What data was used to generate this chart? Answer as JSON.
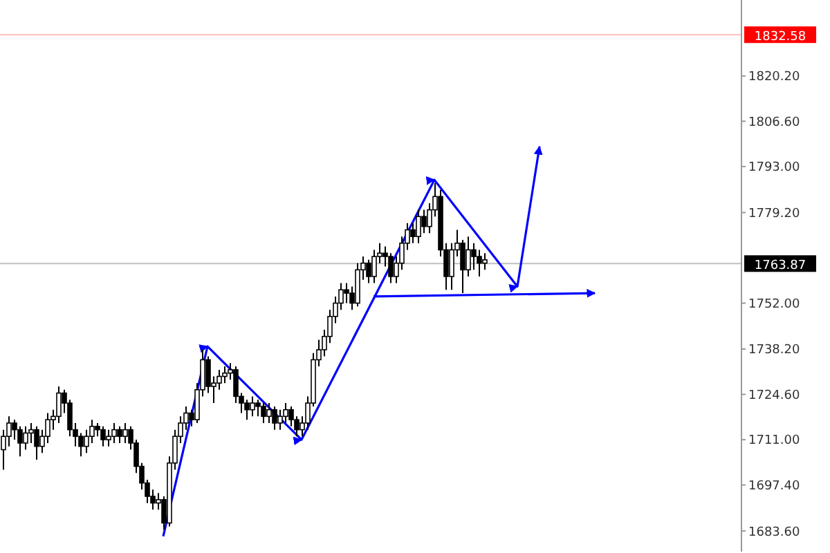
{
  "chart_data": {
    "type": "candlestick",
    "tick_labels": "y",
    "categories": [
      null,
      null,
      null,
      null,
      null,
      null,
      null,
      null,
      null,
      null,
      null,
      null,
      null,
      null,
      null,
      null,
      null,
      null,
      null,
      null,
      null,
      null,
      null,
      null,
      null,
      null,
      null,
      null,
      null,
      null,
      null,
      null,
      null,
      null,
      null,
      null,
      null,
      null,
      null,
      null,
      null,
      null,
      null,
      null,
      null,
      null,
      null,
      null,
      null,
      null,
      null,
      null,
      null,
      null,
      null,
      null,
      null,
      null,
      null,
      null,
      null,
      null,
      null,
      null,
      null,
      null,
      null,
      null,
      null,
      null,
      null,
      null,
      null,
      null,
      null,
      null,
      null,
      null,
      null,
      null,
      null,
      null,
      null,
      null,
      null,
      null,
      null,
      null,
      null,
      null,
      null,
      null,
      null,
      null,
      null,
      null,
      null,
      null,
      null,
      null,
      null,
      null,
      null,
      null,
      null,
      null,
      null,
      null,
      null,
      null,
      null,
      null,
      null,
      null,
      null,
      null,
      null,
      null,
      null,
      null,
      null,
      null,
      null,
      null,
      null,
      null,
      null,
      null,
      null,
      null,
      null,
      null,
      null,
      null
    ],
    "ohlc": [
      [
        1708,
        1714,
        1702,
        1712
      ],
      [
        1712,
        1718,
        1709,
        1716
      ],
      [
        1716,
        1717,
        1711,
        1714
      ],
      [
        1714,
        1715,
        1706,
        1710
      ],
      [
        1710,
        1715,
        1708,
        1713
      ],
      [
        1713,
        1716,
        1710,
        1714
      ],
      [
        1714,
        1715,
        1705,
        1709
      ],
      [
        1709,
        1714,
        1707,
        1712
      ],
      [
        1712,
        1719,
        1710,
        1717
      ],
      [
        1717,
        1720,
        1714,
        1718
      ],
      [
        1718,
        1727,
        1716,
        1725
      ],
      [
        1725,
        1726,
        1719,
        1722
      ],
      [
        1722,
        1723,
        1712,
        1714
      ],
      [
        1714,
        1716,
        1709,
        1712
      ],
      [
        1712,
        1713,
        1706,
        1709
      ],
      [
        1709,
        1714,
        1707,
        1712
      ],
      [
        1712,
        1717,
        1710,
        1715
      ],
      [
        1715,
        1716,
        1712,
        1714
      ],
      [
        1714,
        1715,
        1709,
        1711
      ],
      [
        1711,
        1714,
        1709,
        1712
      ],
      [
        1712,
        1716,
        1710,
        1714
      ],
      [
        1714,
        1715,
        1710,
        1712
      ],
      [
        1712,
        1716,
        1710,
        1714
      ],
      [
        1714,
        1715,
        1708,
        1710
      ],
      [
        1710,
        1711,
        1701,
        1703
      ],
      [
        1703,
        1704,
        1696,
        1698
      ],
      [
        1698,
        1699,
        1692,
        1694
      ],
      [
        1694,
        1696,
        1690,
        1692
      ],
      [
        1692,
        1695,
        1690,
        1693
      ],
      [
        1693,
        1694,
        1684,
        1686
      ],
      [
        1686,
        1706,
        1685,
        1704
      ],
      [
        1704,
        1714,
        1702,
        1712
      ],
      [
        1712,
        1718,
        1710,
        1716
      ],
      [
        1716,
        1721,
        1714,
        1719
      ],
      [
        1719,
        1720,
        1715,
        1717
      ],
      [
        1717,
        1728,
        1716,
        1726
      ],
      [
        1726,
        1738,
        1724,
        1735
      ],
      [
        1735,
        1736,
        1725,
        1727
      ],
      [
        1727,
        1730,
        1722,
        1728
      ],
      [
        1728,
        1732,
        1726,
        1730
      ],
      [
        1730,
        1733,
        1728,
        1731
      ],
      [
        1731,
        1734,
        1729,
        1732
      ],
      [
        1732,
        1733,
        1722,
        1724
      ],
      [
        1724,
        1725,
        1719,
        1722
      ],
      [
        1722,
        1723,
        1717,
        1720
      ],
      [
        1720,
        1724,
        1718,
        1722
      ],
      [
        1722,
        1723,
        1718,
        1721
      ],
      [
        1721,
        1722,
        1716,
        1718
      ],
      [
        1718,
        1722,
        1716,
        1720
      ],
      [
        1720,
        1721,
        1714,
        1716
      ],
      [
        1716,
        1720,
        1714,
        1718
      ],
      [
        1718,
        1722,
        1716,
        1720
      ],
      [
        1720,
        1721,
        1715,
        1717
      ],
      [
        1717,
        1718,
        1712,
        1714
      ],
      [
        1714,
        1718,
        1712,
        1716
      ],
      [
        1716,
        1724,
        1714,
        1722
      ],
      [
        1722,
        1737,
        1721,
        1735
      ],
      [
        1735,
        1741,
        1733,
        1738
      ],
      [
        1738,
        1744,
        1736,
        1742
      ],
      [
        1742,
        1750,
        1740,
        1748
      ],
      [
        1748,
        1754,
        1746,
        1752
      ],
      [
        1752,
        1758,
        1750,
        1756
      ],
      [
        1756,
        1758,
        1752,
        1755
      ],
      [
        1755,
        1757,
        1750,
        1752
      ],
      [
        1752,
        1764,
        1751,
        1762
      ],
      [
        1762,
        1766,
        1759,
        1764
      ],
      [
        1764,
        1765,
        1758,
        1760
      ],
      [
        1760,
        1768,
        1758,
        1766
      ],
      [
        1766,
        1770,
        1764,
        1767
      ],
      [
        1767,
        1769,
        1763,
        1766
      ],
      [
        1766,
        1767,
        1758,
        1760
      ],
      [
        1760,
        1766,
        1758,
        1764
      ],
      [
        1764,
        1772,
        1762,
        1770
      ],
      [
        1770,
        1776,
        1768,
        1774
      ],
      [
        1774,
        1776,
        1770,
        1772
      ],
      [
        1772,
        1780,
        1770,
        1778
      ],
      [
        1778,
        1780,
        1773,
        1775
      ],
      [
        1775,
        1782,
        1773,
        1780
      ],
      [
        1780,
        1788,
        1778,
        1784
      ],
      [
        1784,
        1786,
        1766,
        1768
      ],
      [
        1768,
        1770,
        1756,
        1760
      ],
      [
        1760,
        1770,
        1756,
        1768
      ],
      [
        1768,
        1774,
        1766,
        1770
      ],
      [
        1770,
        1771,
        1755,
        1762
      ],
      [
        1762,
        1772,
        1760,
        1768
      ],
      [
        1768,
        1770,
        1762,
        1766
      ],
      [
        1766,
        1768,
        1760,
        1764
      ],
      [
        1764,
        1767,
        1762,
        1765
      ],
      null,
      null,
      null,
      null,
      null,
      null,
      null,
      null,
      null,
      null,
      null,
      null,
      null,
      null,
      null,
      null,
      null,
      null,
      null,
      null,
      null,
      null,
      null,
      null,
      null,
      null,
      null,
      null,
      null,
      null,
      null,
      null,
      null,
      null,
      null,
      null,
      null,
      null,
      null,
      null,
      null,
      null,
      null,
      null,
      null,
      null
    ],
    "series": [
      {
        "type": "line",
        "color": "#0000ff",
        "values": [
          null,
          null,
          null,
          null,
          null,
          null,
          null,
          null,
          null,
          null,
          null,
          null,
          null,
          null,
          null,
          null,
          null,
          null,
          null,
          null,
          null,
          null,
          null,
          null,
          null,
          null,
          null,
          null,
          null,
          1682,
          null,
          null,
          null,
          null,
          null,
          null,
          null,
          1739,
          null,
          null,
          null,
          null,
          null,
          null,
          null,
          null,
          null,
          null,
          null,
          null,
          null,
          null,
          null,
          null,
          1711,
          null,
          null,
          null,
          null,
          null,
          null,
          null,
          null,
          null,
          null,
          null,
          null,
          null,
          null,
          null,
          null,
          null,
          null,
          null,
          null,
          null,
          null,
          null,
          1789,
          null,
          null,
          null,
          null,
          null,
          null,
          null,
          null,
          null,
          null,
          null,
          null,
          null,
          null,
          1757,
          null,
          null,
          null,
          1799,
          null,
          null,
          null,
          null,
          null,
          null,
          null,
          null,
          null,
          null,
          null,
          null,
          null,
          null,
          null,
          null,
          null,
          null,
          null,
          null,
          null,
          null,
          null,
          null,
          null,
          null,
          null,
          null,
          null,
          null,
          null,
          null,
          null,
          null,
          null,
          null
        ]
      },
      {
        "type": "line",
        "color": "#0000ff",
        "values": [
          null,
          null,
          null,
          null,
          null,
          null,
          null,
          null,
          null,
          null,
          null,
          null,
          null,
          null,
          null,
          null,
          null,
          null,
          null,
          null,
          null,
          null,
          null,
          null,
          null,
          null,
          null,
          null,
          null,
          null,
          null,
          null,
          null,
          null,
          null,
          null,
          null,
          null,
          null,
          null,
          null,
          null,
          null,
          null,
          null,
          null,
          null,
          null,
          null,
          null,
          null,
          null,
          null,
          null,
          null,
          null,
          null,
          null,
          null,
          null,
          null,
          null,
          null,
          null,
          null,
          null,
          null,
          1754,
          null,
          null,
          null,
          null,
          null,
          null,
          null,
          null,
          null,
          null,
          null,
          null,
          null,
          null,
          null,
          null,
          null,
          null,
          null,
          null,
          null,
          null,
          null,
          null,
          null,
          null,
          null,
          null,
          null,
          null,
          null,
          null,
          null,
          null,
          null,
          null,
          null,
          null,
          null,
          1755,
          null,
          null,
          null,
          null,
          null,
          null,
          null,
          null,
          null,
          null,
          null,
          null,
          null,
          null,
          null,
          null,
          null,
          null,
          null,
          null,
          null,
          null,
          null,
          null,
          null,
          null
        ]
      }
    ],
    "line_style": "solid",
    "marker": "none",
    "ylim": [
      1677.4,
      1843.0
    ],
    "yticks": [
      {
        "value": 1820.2,
        "label": "1820.20"
      },
      {
        "value": 1806.6,
        "label": "1806.60"
      },
      {
        "value": 1793.0,
        "label": "1793.00"
      },
      {
        "value": 1779.2,
        "label": "1779.20"
      },
      {
        "value": 1752.0,
        "label": "1752.00"
      },
      {
        "value": 1738.2,
        "label": "1738.20"
      },
      {
        "value": 1724.6,
        "label": "1724.60"
      },
      {
        "value": 1711.0,
        "label": "1711.00"
      },
      {
        "value": 1697.4,
        "label": "1697.40"
      },
      {
        "value": 1683.6,
        "label": "1683.60"
      }
    ],
    "ref_lines": [
      {
        "axis": "y",
        "value": 1832.58,
        "label": "1832.58",
        "color": "#ff0000"
      },
      {
        "axis": "y",
        "value": 1763.87,
        "label": "1763.87",
        "color": "#000000"
      }
    ]
  }
}
